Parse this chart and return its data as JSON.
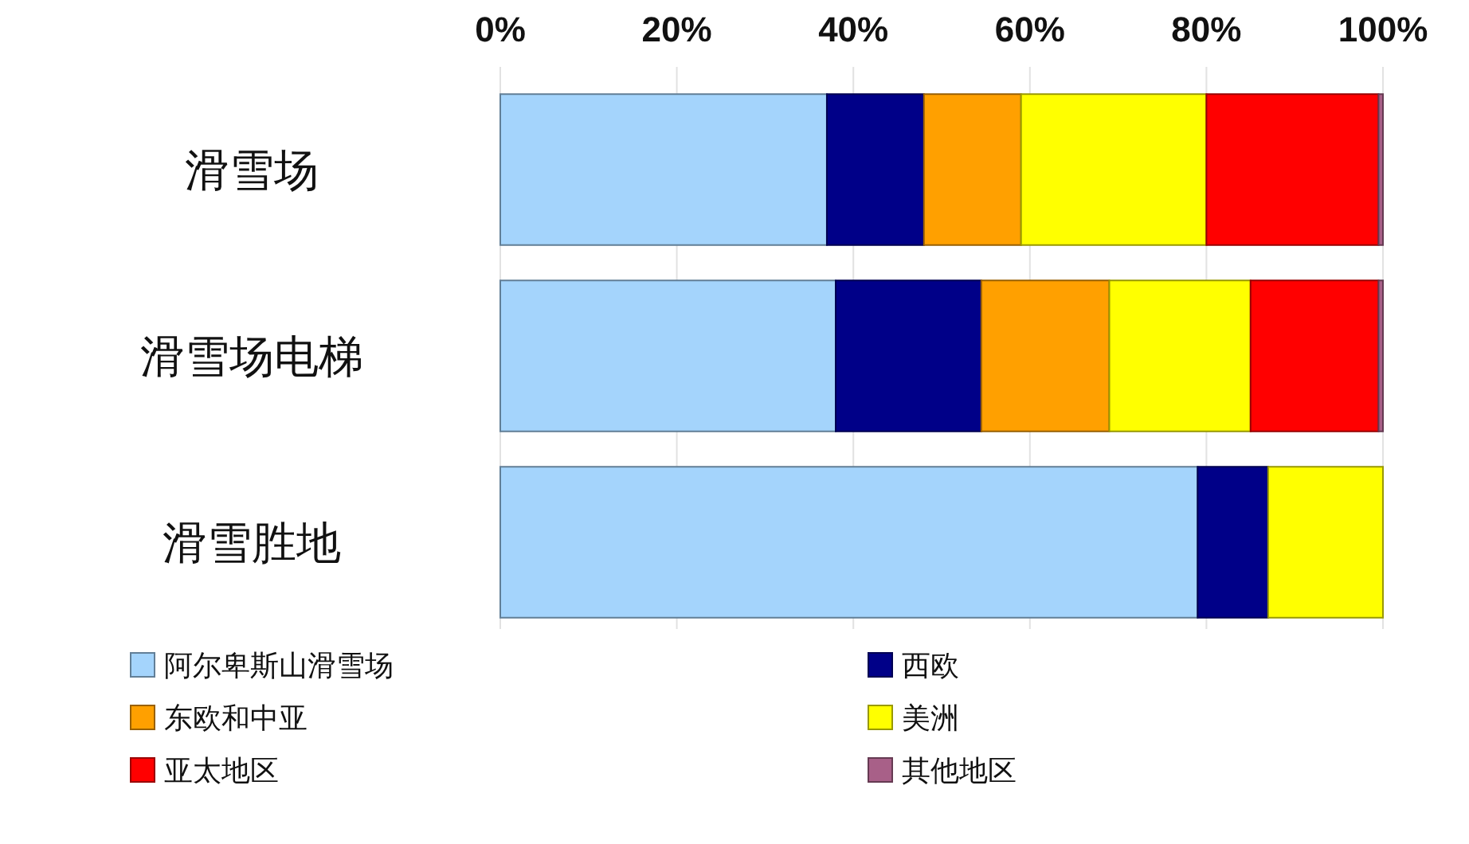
{
  "chart_data": {
    "type": "bar",
    "orientation": "horizontal",
    "stacked": true,
    "categories": [
      "滑雪场",
      "滑雪场电梯",
      "滑雪胜地"
    ],
    "series": [
      {
        "name": "阿尔卑斯山滑雪场",
        "color": "#a4d4fc",
        "values": [
          37,
          38,
          79
        ]
      },
      {
        "name": "西欧",
        "color": "#000088",
        "values": [
          11,
          16.5,
          8
        ]
      },
      {
        "name": "东欧和中亚",
        "color": "#ffa000",
        "values": [
          11,
          14.5,
          null
        ]
      },
      {
        "name": "美洲",
        "color": "#ffff00",
        "values": [
          21,
          16,
          13
        ]
      },
      {
        "name": "亚太地区",
        "color": "#ff0000",
        "values": [
          19.5,
          14.5,
          null
        ]
      },
      {
        "name": "其他地区",
        "color": "#a86088",
        "values": [
          0.5,
          0.5,
          null
        ]
      }
    ],
    "xlim": [
      0,
      100
    ],
    "xticks": [
      {
        "value": 0,
        "label": "0%"
      },
      {
        "value": 20,
        "label": "20%"
      },
      {
        "value": 40,
        "label": "40%"
      },
      {
        "value": 60,
        "label": "60%"
      },
      {
        "value": 80,
        "label": "80%"
      },
      {
        "value": 100,
        "label": "100%"
      }
    ],
    "grid": "x",
    "legend": "bottom"
  }
}
